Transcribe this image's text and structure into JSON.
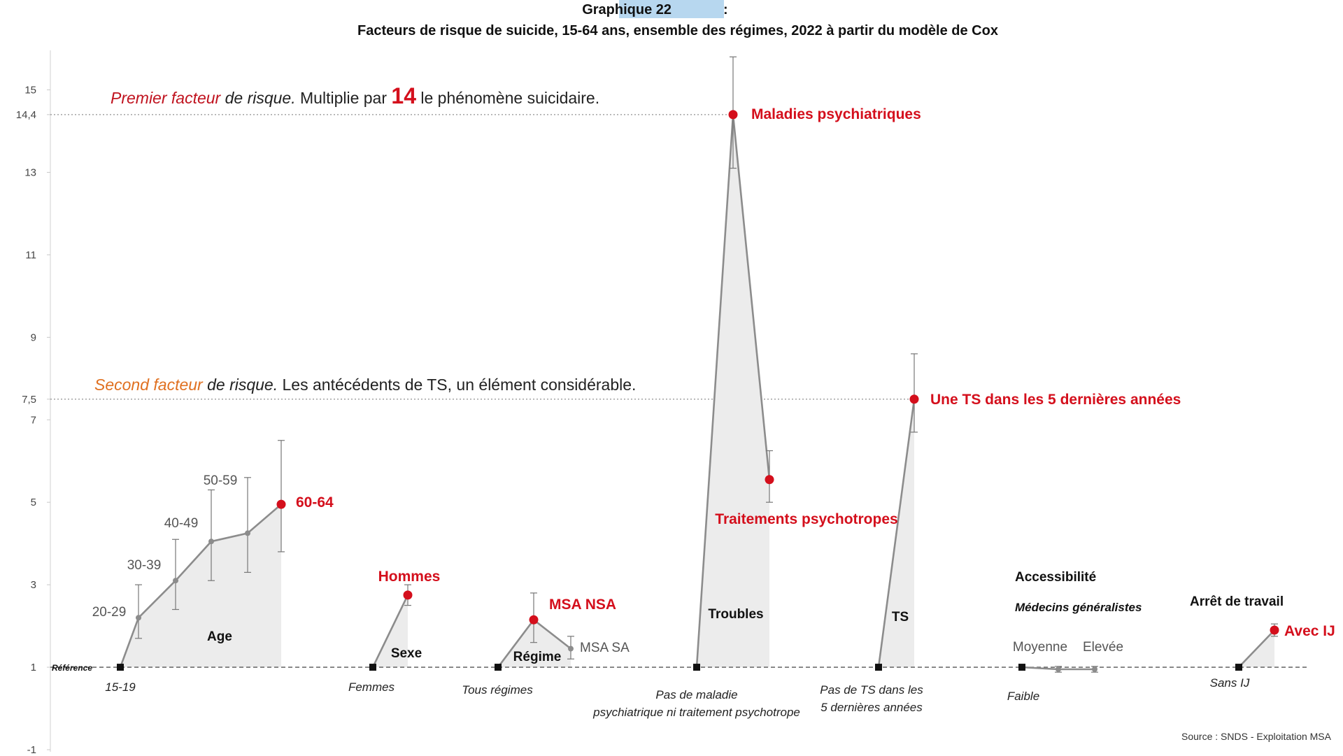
{
  "header": {
    "label": "Graphique 22",
    "label_suffix": " :",
    "title": "Facteurs de risque de suicide, 15-64 ans, ensemble des régimes, 2022 à partir du modèle de Cox"
  },
  "annotations": {
    "first": {
      "p1": "Premier facteur",
      "p2": " de risque.",
      "p3": " Multiplie par ",
      "p4": "14",
      "p5": " le phénomène suicidaire."
    },
    "second": {
      "p1": "Second facteur",
      "p2": " de risque.",
      "p3": " Les antécédents de TS, un élément considérable."
    }
  },
  "source": "Source : SNDS - Exploitation MSA",
  "colors": {
    "accent_red": "#d40f1c",
    "first_annotation_red": "#c0131f",
    "second_annotation_orange": "#e07020",
    "line_grey": "#8c8c8c",
    "area_fill": "#ececec"
  },
  "chart_data": {
    "type": "line",
    "ylim": [
      -1,
      16
    ],
    "yticks": [
      {
        "value": 15,
        "label": "15"
      },
      {
        "value": 14.4,
        "label": "14,4"
      },
      {
        "value": 13,
        "label": "13"
      },
      {
        "value": 11,
        "label": "11"
      },
      {
        "value": 9,
        "label": "9"
      },
      {
        "value": 7.5,
        "label": "7,5"
      },
      {
        "value": 7,
        "label": "7"
      },
      {
        "value": 5,
        "label": "5"
      },
      {
        "value": 3,
        "label": "3"
      },
      {
        "value": 1,
        "label": "1"
      },
      {
        "value": -1,
        "label": "-1"
      }
    ],
    "reference_value": 1,
    "reference_label": "Référence",
    "highlight_lines": [
      14.4,
      7.5
    ],
    "groups": [
      {
        "name": "Age",
        "reference": "15-19",
        "points": [
          {
            "label": "20-29",
            "value": 2.2,
            "ci": [
              1.7,
              3.0
            ]
          },
          {
            "label": "30-39",
            "value": 3.1,
            "ci": [
              2.4,
              4.1
            ]
          },
          {
            "label": "40-49",
            "value": 4.05,
            "ci": [
              3.1,
              5.3
            ]
          },
          {
            "label": "50-59",
            "value": 4.25,
            "ci": [
              3.3,
              5.6
            ]
          },
          {
            "label": "60-64",
            "value": 4.95,
            "ci": [
              3.8,
              6.5
            ],
            "highlight": true
          }
        ]
      },
      {
        "name": "Sexe",
        "reference": "Femmes",
        "points": [
          {
            "label": "Hommes",
            "value": 2.75,
            "ci": [
              2.5,
              3.0
            ],
            "highlight": true
          }
        ]
      },
      {
        "name": "Régime",
        "reference": "Tous régimes",
        "points": [
          {
            "label": "MSA NSA",
            "value": 2.15,
            "ci": [
              1.6,
              2.8
            ],
            "highlight": true
          },
          {
            "label": "MSA SA",
            "value": 1.45,
            "ci": [
              1.2,
              1.75
            ]
          }
        ]
      },
      {
        "name": "Troubles",
        "reference": "Pas de maladie psychiatrique ni traitement psychotrope",
        "points": [
          {
            "label": "Maladies psychiatriques",
            "value": 14.4,
            "ci": [
              13.1,
              15.8
            ],
            "highlight": true
          },
          {
            "label": "Traitements psychotropes",
            "value": 5.55,
            "ci": [
              5.0,
              6.25
            ],
            "highlight": true
          }
        ]
      },
      {
        "name": "TS",
        "reference": "Pas de TS dans les 5 dernières années",
        "points": [
          {
            "label": "Une TS dans les 5 dernières années",
            "value": 7.5,
            "ci": [
              6.7,
              8.6
            ],
            "highlight": true
          }
        ]
      },
      {
        "name": "Accessibilité",
        "subtitle": "Médecins généralistes",
        "reference": "Faible",
        "points": [
          {
            "label": "Moyenne",
            "value": 0.95,
            "ci": [
              0.88,
              1.02
            ]
          },
          {
            "label": "Elevée",
            "value": 0.95,
            "ci": [
              0.88,
              1.02
            ]
          }
        ]
      },
      {
        "name": "Arrêt de travail",
        "reference": "Sans IJ",
        "points": [
          {
            "label": "Avec IJ",
            "value": 1.9,
            "ci": [
              1.75,
              2.05
            ],
            "highlight": true
          }
        ]
      }
    ]
  }
}
